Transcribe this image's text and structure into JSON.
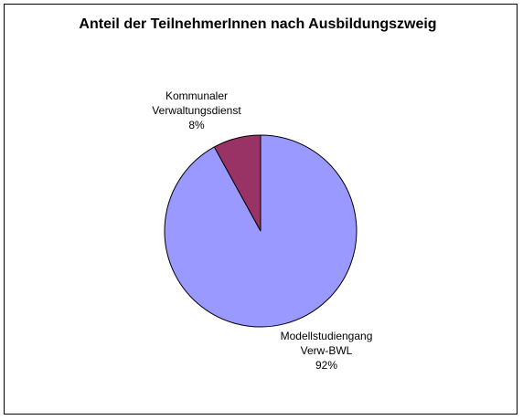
{
  "chart_data": {
    "type": "pie",
    "title": "Anteil der TeilnehmerInnen nach Ausbildungszweig",
    "slices": [
      {
        "label_lines": [
          "Modellstudiengang",
          "Verw-BWL"
        ],
        "percent_label": "92%",
        "value": 92,
        "color": "#9999ff"
      },
      {
        "label_lines": [
          "Kommunaler",
          "Verwaltungsdienst"
        ],
        "percent_label": "8%",
        "value": 8,
        "color": "#993366"
      }
    ],
    "legend": "none"
  }
}
